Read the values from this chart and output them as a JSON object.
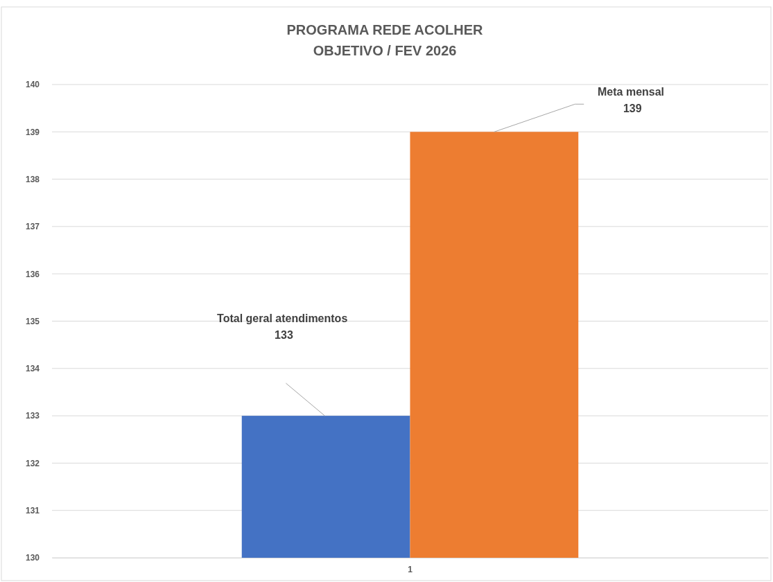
{
  "chart_data": {
    "type": "bar",
    "title": "PROGRAMA REDE ACOLHER",
    "subtitle": "OBJETIVO / FEV 2026",
    "categories": [
      "1"
    ],
    "series": [
      {
        "color": "#4472c4",
        "values": [
          133
        ]
      },
      {
        "color": "#ed7d31",
        "values": [
          139
        ]
      }
    ],
    "annotations": [
      "Total geral atendimentos\n133",
      "Meta mensal\n139"
    ],
    "ylim": [
      130,
      140
    ],
    "yticks": [
      130,
      131,
      132,
      133,
      134,
      135,
      136,
      137,
      138,
      139,
      140
    ],
    "grid": "y"
  }
}
